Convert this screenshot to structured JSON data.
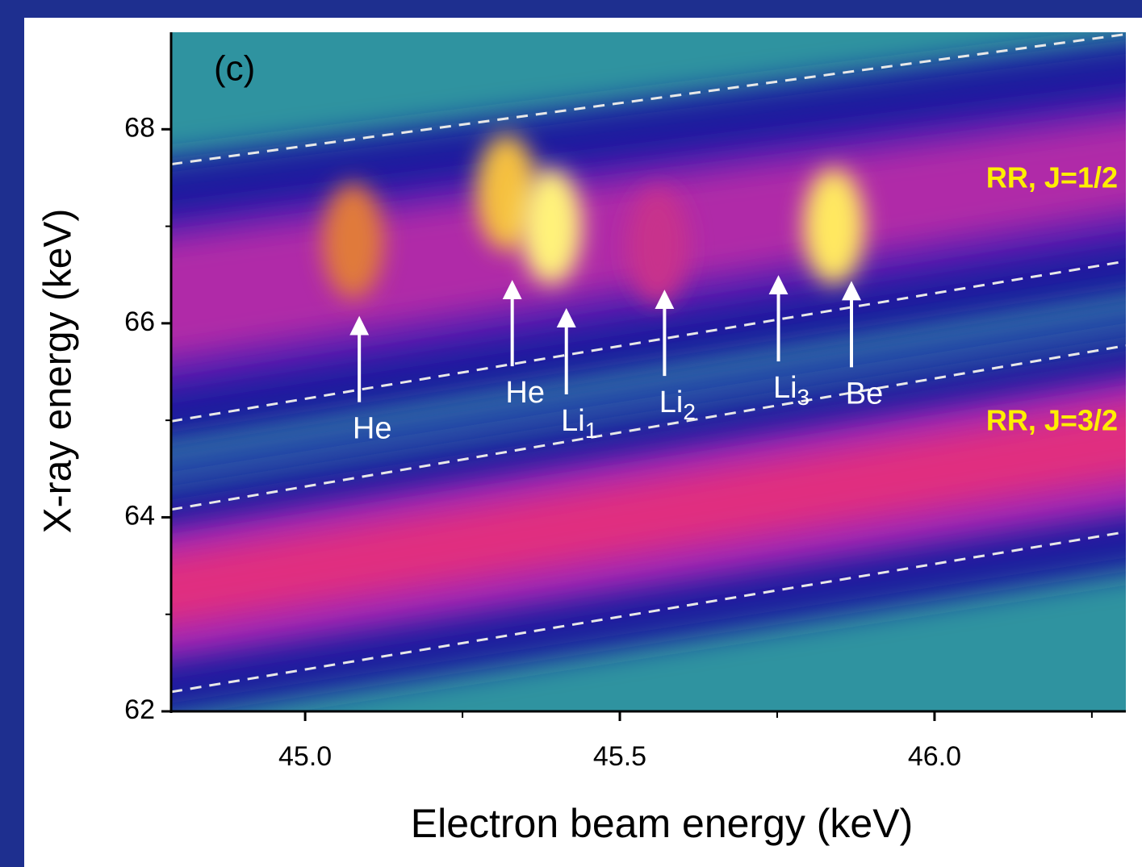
{
  "chart_data": {
    "type": "heatmap",
    "title": "(c)",
    "x_label": "Electron beam energy (keV)",
    "y_label": "X-ray energy (keV)",
    "xlim": [
      44.787,
      46.304
    ],
    "ylim": [
      62,
      69
    ],
    "xticks": [
      {
        "value": 45,
        "label": "45.0"
      },
      {
        "value": 45.5,
        "label": "45.5"
      },
      {
        "value": 46,
        "label": "46.0"
      }
    ],
    "xminor": [
      45.25,
      45.75,
      46.25
    ],
    "yticks": [
      62,
      64,
      66,
      68
    ],
    "yminor": [
      63,
      65,
      67
    ],
    "guides": [
      {
        "x": [
          44.787,
          46.304
        ],
        "y": [
          67.64,
          68.98
        ]
      },
      {
        "x": [
          44.787,
          46.304
        ],
        "y": [
          64.99,
          66.64
        ]
      },
      {
        "x": [
          44.787,
          46.304
        ],
        "y": [
          64.08,
          65.77
        ]
      },
      {
        "x": [
          44.787,
          46.304
        ],
        "y": [
          62.2,
          63.85
        ]
      }
    ],
    "bands": [
      {
        "label": "RR, J=1/2"
      },
      {
        "label": "RR, J=3/2"
      }
    ],
    "band_label_color": "#ffee00",
    "spots": [
      {
        "x": 45.076,
        "y": 66.85,
        "color": "#e07a3a"
      },
      {
        "x": 45.32,
        "y": 67.35,
        "color": "#f5c040"
      },
      {
        "x": 45.391,
        "y": 67.0,
        "color": "#fff27a"
      },
      {
        "x": 45.56,
        "y": 66.8,
        "color": "#c8308c"
      },
      {
        "x": 45.84,
        "y": 67.0,
        "color": "#ffe860"
      }
    ],
    "peaks": [
      {
        "label": "He",
        "x": 45.086,
        "y": 66.06
      },
      {
        "label": "He",
        "x": 45.329,
        "y": 66.43
      },
      {
        "label": "Li",
        "subscript": "1",
        "x": 45.415,
        "y": 66.14
      },
      {
        "label": "Li",
        "subscript": "2",
        "x": 45.571,
        "y": 66.33
      },
      {
        "label": "Li",
        "subscript": "3",
        "x": 45.752,
        "y": 66.48
      },
      {
        "label": "Be",
        "x": 45.868,
        "y": 66.42
      }
    ]
  }
}
